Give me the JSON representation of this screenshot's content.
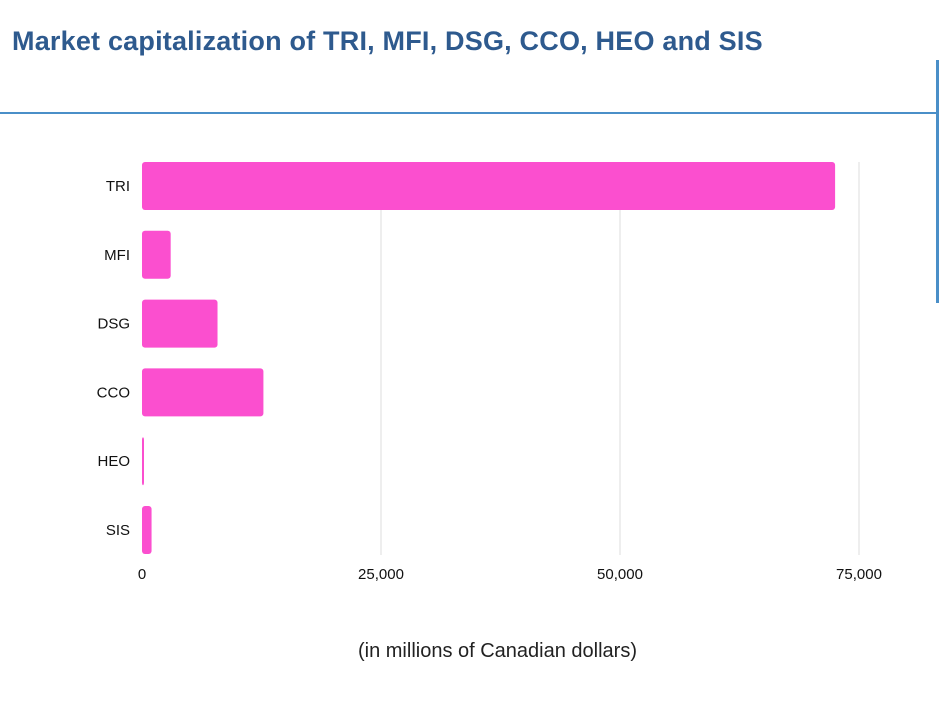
{
  "chart_data": {
    "type": "bar",
    "orientation": "horizontal",
    "title": "Market capitalization of TRI, MFI, DSG, CCO, HEO and SIS",
    "xlabel": "(in millions of Canadian dollars)",
    "ylabel": "",
    "categories": [
      "TRI",
      "MFI",
      "DSG",
      "CCO",
      "HEO",
      "SIS"
    ],
    "values": [
      72500,
      3000,
      7900,
      12700,
      200,
      1000
    ],
    "xlim": [
      0,
      75000
    ],
    "xticks": [
      0,
      25000,
      50000,
      75000
    ],
    "xtick_labels": [
      "0",
      "25,000",
      "50,000",
      "75,000"
    ],
    "grid": "vertical",
    "bar_color": "#fb4fcf"
  }
}
